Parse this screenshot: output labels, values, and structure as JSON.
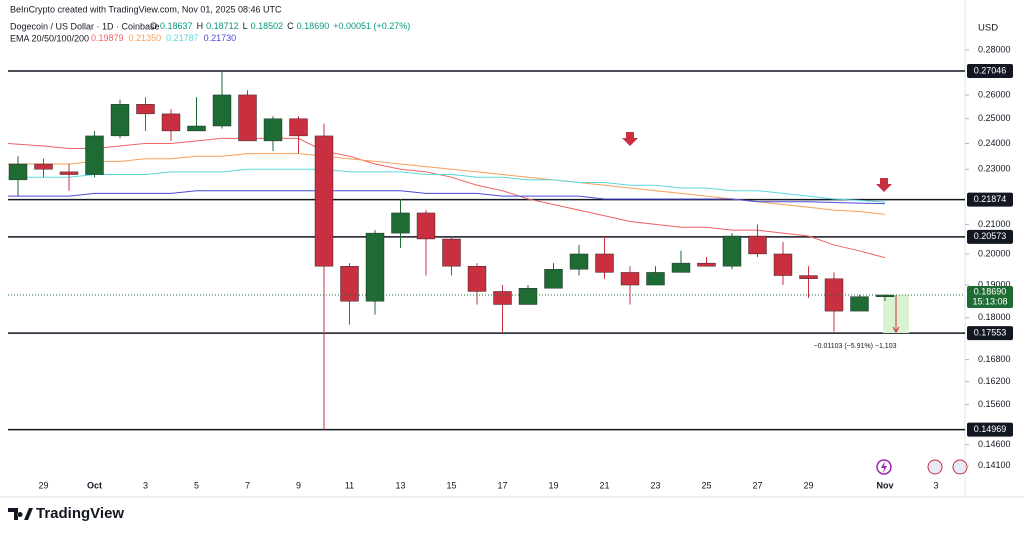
{
  "header": {
    "credit": "BeInCrypto created with TradingView.com, Nov 01, 2025 08:46 UTC",
    "symbol": "Dogecoin / US Dollar · 1D · Coinbase",
    "ohlc": [
      {
        "key": "O",
        "value": "0.18637"
      },
      {
        "key": "H",
        "value": "0.18712"
      },
      {
        "key": "L",
        "value": "0.18502"
      },
      {
        "key": "C",
        "value": "0.18690"
      }
    ],
    "change": "+0.00051 (+0.27%)",
    "ema_title": "EMA 20/50/100/200",
    "ema_values": [
      "0.19879",
      "0.21350",
      "0.21787",
      "0.21730"
    ]
  },
  "footer": {
    "brand": "TradingView"
  },
  "chart_data": {
    "type": "candlestick",
    "categories": [
      null,
      "29",
      null,
      "Oct",
      null,
      "3",
      null,
      "5",
      null,
      "7",
      null,
      "9",
      null,
      "11",
      null,
      "13",
      null,
      "15",
      null,
      "17",
      null,
      "19",
      null,
      "21",
      null,
      "23",
      null,
      "25",
      null,
      "27",
      null,
      "29",
      null,
      null,
      "Nov",
      null,
      "3"
    ],
    "open": [
      0.226,
      0.232,
      0.229,
      0.228,
      0.243,
      0.256,
      0.252,
      0.245,
      0.247,
      0.26,
      0.241,
      0.25,
      0.243,
      0.196,
      0.185,
      0.207,
      0.214,
      0.205,
      0.196,
      0.188,
      0.184,
      0.189,
      0.195,
      0.2,
      0.194,
      0.19,
      0.194,
      0.197,
      0.196,
      0.206,
      0.2,
      0.193,
      0.192,
      0.182,
      0.18637,
      null,
      null
    ],
    "high": [
      0.235,
      0.234,
      0.232,
      0.245,
      0.258,
      0.259,
      0.254,
      0.259,
      0.27,
      0.262,
      0.251,
      0.251,
      0.248,
      0.197,
      0.208,
      0.219,
      0.215,
      0.206,
      0.197,
      0.19,
      0.19,
      0.197,
      0.203,
      0.206,
      0.196,
      0.196,
      0.201,
      0.199,
      0.207,
      0.21,
      0.204,
      0.196,
      0.194,
      0.187,
      0.18712,
      null,
      null
    ],
    "low": [
      0.22,
      0.227,
      0.222,
      0.227,
      0.242,
      0.245,
      0.241,
      0.245,
      0.246,
      0.241,
      0.237,
      0.236,
      0.1497,
      0.178,
      0.181,
      0.202,
      0.193,
      0.193,
      0.184,
      0.1755,
      0.184,
      0.189,
      0.193,
      0.192,
      0.184,
      0.19,
      0.194,
      0.196,
      0.195,
      0.199,
      0.19,
      0.186,
      0.176,
      0.182,
      0.18502,
      null,
      null
    ],
    "close": [
      0.232,
      0.23,
      0.228,
      0.243,
      0.256,
      0.252,
      0.245,
      0.247,
      0.26,
      0.241,
      0.25,
      0.243,
      0.196,
      0.185,
      0.207,
      0.214,
      0.205,
      0.196,
      0.188,
      0.184,
      0.189,
      0.195,
      0.2,
      0.194,
      0.19,
      0.194,
      0.197,
      0.196,
      0.206,
      0.2,
      0.193,
      0.192,
      0.182,
      0.1864,
      0.1869,
      null,
      null
    ],
    "up_color": "#1e6b34",
    "down_color": "#c8303f",
    "ema_lines": [
      {
        "color": "#f06262",
        "values": [
          0.24,
          0.239,
          0.238,
          0.238,
          0.239,
          0.24,
          0.24,
          0.241,
          0.242,
          0.242,
          0.242,
          0.242,
          0.237,
          0.235,
          0.232,
          0.23,
          0.229,
          0.227,
          0.224,
          0.222,
          0.219,
          0.217,
          0.215,
          0.213,
          0.211,
          0.21,
          0.209,
          0.209,
          0.208,
          0.208,
          0.207,
          0.206,
          0.203,
          0.201,
          0.19879,
          null,
          null
        ]
      },
      {
        "color": "#f5a05a",
        "values": [
          0.232,
          0.232,
          0.232,
          0.233,
          0.233,
          0.234,
          0.234,
          0.235,
          0.235,
          0.236,
          0.236,
          0.236,
          0.235,
          0.234,
          0.233,
          0.232,
          0.231,
          0.23,
          0.229,
          0.228,
          0.227,
          0.226,
          0.225,
          0.224,
          0.223,
          0.222,
          0.221,
          0.22,
          0.219,
          0.218,
          0.217,
          0.216,
          0.215,
          0.2145,
          0.2135,
          null,
          null
        ]
      },
      {
        "color": "#5ad8de",
        "values": [
          0.227,
          0.227,
          0.227,
          0.228,
          0.228,
          0.228,
          0.229,
          0.229,
          0.229,
          0.23,
          0.23,
          0.23,
          0.23,
          0.229,
          0.229,
          0.229,
          0.228,
          0.228,
          0.227,
          0.227,
          0.226,
          0.226,
          0.225,
          0.225,
          0.224,
          0.224,
          0.223,
          0.223,
          0.222,
          0.222,
          0.221,
          0.22,
          0.219,
          0.2185,
          0.21787,
          null,
          null
        ]
      },
      {
        "color": "#4b4bd8",
        "values": [
          0.22,
          0.22,
          0.22,
          0.221,
          0.221,
          0.221,
          0.221,
          0.222,
          0.222,
          0.222,
          0.222,
          0.222,
          0.222,
          0.222,
          0.222,
          0.222,
          0.221,
          0.221,
          0.221,
          0.22,
          0.22,
          0.22,
          0.22,
          0.219,
          0.219,
          0.219,
          0.219,
          0.219,
          0.219,
          0.218,
          0.218,
          0.218,
          0.2177,
          0.2175,
          0.2173,
          null,
          null
        ]
      }
    ],
    "y_axis_label": "USD",
    "log_scale": true,
    "ylim": [
      0.1382,
      0.2991
    ],
    "yticks": [
      {
        "value": 0.28,
        "label": "0.28000"
      },
      {
        "value": 0.26,
        "label": "0.26000"
      },
      {
        "value": 0.25,
        "label": "0.25000"
      },
      {
        "value": 0.24,
        "label": "0.24000"
      },
      {
        "value": 0.23,
        "label": "0.23000"
      },
      {
        "value": 0.21,
        "label": "0.21000"
      },
      {
        "value": 0.2,
        "label": "0.20000"
      },
      {
        "value": 0.19,
        "label": "0.19000"
      },
      {
        "value": 0.18,
        "label": "0.18000"
      },
      {
        "value": 0.168,
        "label": "0.16800"
      },
      {
        "value": 0.162,
        "label": "0.16200"
      },
      {
        "value": 0.156,
        "label": "0.15600"
      },
      {
        "value": 0.146,
        "label": "0.14600"
      },
      {
        "value": 0.141,
        "label": "0.14100"
      }
    ],
    "levels": [
      0.27046,
      0.21874,
      0.20573,
      0.17553,
      0.14969
    ],
    "current_price": {
      "value": 0.1869,
      "label": "0.18690"
    },
    "countdown": "15:13:08",
    "measure_label": "−0.01103 (−5.91%) −1,103",
    "grid": false
  }
}
